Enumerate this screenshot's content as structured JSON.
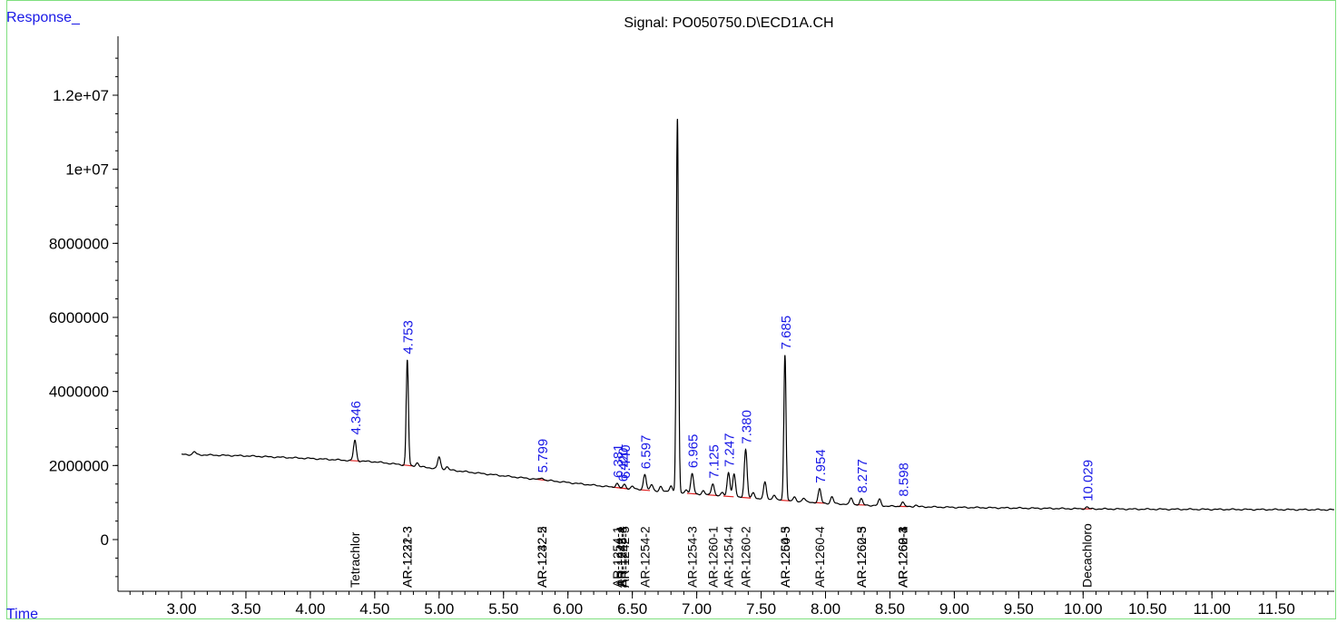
{
  "header": {
    "y_axis_name": "Response_",
    "x_axis_name": "Time",
    "title": "Signal: PO050750.D\\ECD1A.CH"
  },
  "colors": {
    "trace": "#000000",
    "peak_label": "#1818e6",
    "baseline_marker": "#e02020",
    "frame": "#7fe07f"
  },
  "chart_data": {
    "type": "line",
    "title": "Signal: PO050750.D\\ECD1A.CH",
    "xlabel": "Time",
    "ylabel": "Response_",
    "xlim": [
      2.6,
      11.95
    ],
    "ylim": [
      -1300000,
      13700000
    ],
    "grid": false,
    "x_ticks": [
      "3.00",
      "3.50",
      "4.00",
      "4.50",
      "5.00",
      "5.50",
      "6.00",
      "6.50",
      "7.00",
      "7.50",
      "8.00",
      "8.50",
      "9.00",
      "9.50",
      "10.00",
      "10.50",
      "11.00",
      "11.50"
    ],
    "y_ticks": [
      "0",
      "2000000",
      "4000000",
      "6000000",
      "8000000",
      "1e+07",
      "1.2e+07"
    ],
    "baseline": [
      [
        3.0,
        2300000
      ],
      [
        3.5,
        2260000
      ],
      [
        4.0,
        2190000
      ],
      [
        4.5,
        2100000
      ],
      [
        5.0,
        1910000
      ],
      [
        5.5,
        1720000
      ],
      [
        6.0,
        1540000
      ],
      [
        6.5,
        1360000
      ],
      [
        7.0,
        1230000
      ],
      [
        7.5,
        1100000
      ],
      [
        8.0,
        980000
      ],
      [
        8.5,
        900000
      ],
      [
        9.0,
        870000
      ],
      [
        9.5,
        850000
      ],
      [
        10.0,
        830000
      ],
      [
        10.5,
        820000
      ],
      [
        11.0,
        815000
      ],
      [
        11.5,
        810000
      ],
      [
        11.95,
        805000
      ]
    ],
    "peaks": [
      {
        "rt": 3.1,
        "height": 80000
      },
      {
        "rt": 4.346,
        "height": 550000
      },
      {
        "rt": 4.753,
        "height": 2850000
      },
      {
        "rt": 4.83,
        "height": 100000
      },
      {
        "rt": 5.0,
        "height": 320000
      },
      {
        "rt": 5.06,
        "height": 80000
      },
      {
        "rt": 5.799,
        "height": 60000
      },
      {
        "rt": 6.381,
        "height": 120000
      },
      {
        "rt": 6.44,
        "height": 100000
      },
      {
        "rt": 6.5,
        "height": 90000
      },
      {
        "rt": 6.597,
        "height": 440000
      },
      {
        "rt": 6.65,
        "height": 160000
      },
      {
        "rt": 6.72,
        "height": 130000
      },
      {
        "rt": 6.8,
        "height": 180000
      },
      {
        "rt": 6.85,
        "height": 10100000
      },
      {
        "rt": 6.92,
        "height": 100000
      },
      {
        "rt": 6.965,
        "height": 530000
      },
      {
        "rt": 7.05,
        "height": 100000
      },
      {
        "rt": 7.125,
        "height": 320000
      },
      {
        "rt": 7.2,
        "height": 80000
      },
      {
        "rt": 7.247,
        "height": 650000
      },
      {
        "rt": 7.29,
        "height": 600000
      },
      {
        "rt": 7.38,
        "height": 1300000
      },
      {
        "rt": 7.44,
        "height": 150000
      },
      {
        "rt": 7.53,
        "height": 450000
      },
      {
        "rt": 7.6,
        "height": 130000
      },
      {
        "rt": 7.685,
        "height": 3950000
      },
      {
        "rt": 7.76,
        "height": 100000
      },
      {
        "rt": 7.83,
        "height": 100000
      },
      {
        "rt": 7.954,
        "height": 370000
      },
      {
        "rt": 8.05,
        "height": 180000
      },
      {
        "rt": 8.2,
        "height": 170000
      },
      {
        "rt": 8.277,
        "height": 160000
      },
      {
        "rt": 8.42,
        "height": 170000
      },
      {
        "rt": 8.598,
        "height": 120000
      },
      {
        "rt": 8.7,
        "height": 40000
      },
      {
        "rt": 10.029,
        "height": 50000
      }
    ],
    "peak_labels": [
      {
        "rt": 4.346,
        "text": "4.346"
      },
      {
        "rt": 4.753,
        "text": "4.753"
      },
      {
        "rt": 5.799,
        "text": "5.799"
      },
      {
        "rt": 6.381,
        "text": "6.381"
      },
      {
        "rt": 6.42,
        "text": "6.420"
      },
      {
        "rt": 6.44,
        "text": "6.440"
      },
      {
        "rt": 6.597,
        "text": "6.597"
      },
      {
        "rt": 6.965,
        "text": "6.965"
      },
      {
        "rt": 7.125,
        "text": "7.125"
      },
      {
        "rt": 7.247,
        "text": "7.247"
      },
      {
        "rt": 7.38,
        "text": "7.380"
      },
      {
        "rt": 7.685,
        "text": "7.685"
      },
      {
        "rt": 7.954,
        "text": "7.954"
      },
      {
        "rt": 8.277,
        "text": "8.277"
      },
      {
        "rt": 8.598,
        "text": "8.598"
      },
      {
        "rt": 10.029,
        "text": "10.029"
      }
    ],
    "compound_labels": [
      {
        "rt": 4.346,
        "text": "Tetrachlor"
      },
      {
        "rt": 4.753,
        "text": "AR-1232-3"
      },
      {
        "rt": 4.753,
        "text": "AR-1221-3"
      },
      {
        "rt": 5.799,
        "text": "AR-1242-2"
      },
      {
        "rt": 5.799,
        "text": "AR-1232-5"
      },
      {
        "rt": 6.381,
        "text": "AR-1254-1"
      },
      {
        "rt": 6.41,
        "text": "AR-1242-4"
      },
      {
        "rt": 6.42,
        "text": "AR-1248-3"
      },
      {
        "rt": 6.44,
        "text": "AR-1242-5"
      },
      {
        "rt": 6.597,
        "text": "AR-1254-2"
      },
      {
        "rt": 6.965,
        "text": "AR-1254-3"
      },
      {
        "rt": 7.125,
        "text": "AR-1260-1"
      },
      {
        "rt": 7.247,
        "text": "AR-1254-4"
      },
      {
        "rt": 7.38,
        "text": "AR-1260-2"
      },
      {
        "rt": 7.685,
        "text": "AR-1254-5"
      },
      {
        "rt": 7.685,
        "text": "AR-1260-3"
      },
      {
        "rt": 7.954,
        "text": "AR-1260-4"
      },
      {
        "rt": 8.277,
        "text": "AR-1260-5"
      },
      {
        "rt": 8.277,
        "text": "AR-1262-3"
      },
      {
        "rt": 8.598,
        "text": "AR-1268-1"
      },
      {
        "rt": 8.598,
        "text": "AR-1262-4"
      },
      {
        "rt": 8.598,
        "text": "AR-1260-3"
      },
      {
        "rt": 10.029,
        "text": "Decachloro"
      }
    ]
  }
}
